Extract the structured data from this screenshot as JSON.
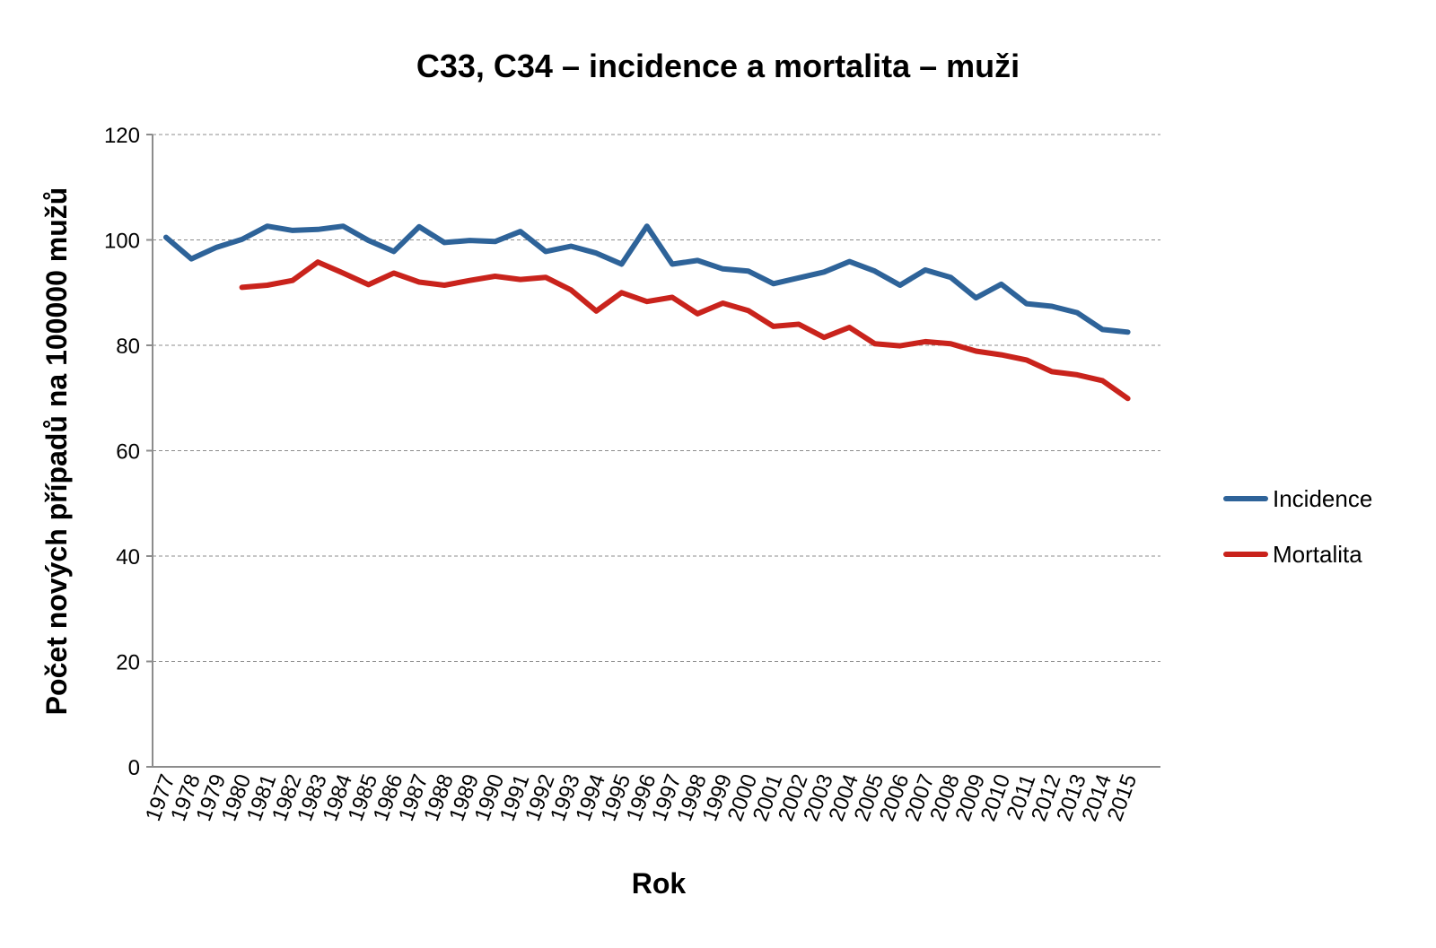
{
  "chart_data": {
    "type": "line",
    "title": "C33, C34 – incidence a mortalita – muži",
    "xlabel": "Rok",
    "ylabel": "Počet nových případů na 100000 mužů",
    "ylim": [
      0,
      120
    ],
    "yticks": [
      "0",
      "20",
      "40",
      "60",
      "80",
      "100",
      "120"
    ],
    "ytick_values": [
      0,
      20,
      40,
      60,
      80,
      100,
      120
    ],
    "grid": true,
    "legend_position": "right",
    "categories": [
      "1977",
      "1978",
      "1979",
      "1980",
      "1981",
      "1982",
      "1983",
      "1984",
      "1985",
      "1986",
      "1987",
      "1988",
      "1989",
      "1990",
      "1991",
      "1992",
      "1993",
      "1994",
      "1995",
      "1996",
      "1997",
      "1998",
      "1999",
      "2000",
      "2001",
      "2002",
      "2003",
      "2004",
      "2005",
      "2006",
      "2007",
      "2008",
      "2009",
      "2010",
      "2011",
      "2012",
      "2013",
      "2014",
      "2015"
    ],
    "series": [
      {
        "name": "Incidence",
        "color": "#2e6399",
        "values": [
          100.5,
          96.4,
          98.6,
          100.1,
          102.6,
          101.8,
          102.0,
          102.6,
          99.9,
          97.8,
          102.5,
          99.5,
          99.9,
          99.7,
          101.6,
          97.8,
          98.8,
          97.5,
          95.4,
          102.6,
          95.4,
          96.1,
          94.5,
          94.1,
          91.7,
          92.8,
          93.9,
          95.9,
          94.1,
          91.4,
          94.3,
          92.9,
          89.0,
          91.6,
          87.9,
          87.4,
          86.2,
          83.0,
          82.5
        ]
      },
      {
        "name": "Mortalita",
        "color": "#c9231c",
        "values": [
          null,
          null,
          null,
          91.0,
          91.4,
          92.3,
          95.8,
          93.7,
          91.5,
          93.7,
          92.0,
          91.4,
          92.3,
          93.1,
          92.5,
          92.9,
          90.5,
          86.5,
          90.0,
          88.3,
          89.1,
          86.0,
          88.0,
          86.6,
          83.6,
          84.0,
          81.5,
          83.4,
          80.3,
          79.9,
          80.7,
          80.3,
          78.9,
          78.2,
          77.2,
          75.0,
          74.4,
          73.3,
          69.9
        ]
      }
    ]
  }
}
